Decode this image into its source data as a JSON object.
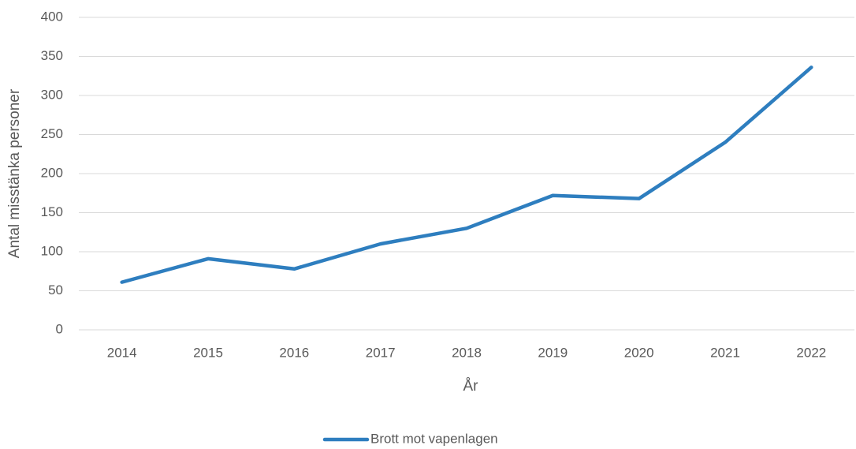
{
  "chart_data": {
    "type": "line",
    "categories": [
      "2014",
      "2015",
      "2016",
      "2017",
      "2018",
      "2019",
      "2020",
      "2021",
      "2022"
    ],
    "series": [
      {
        "name": "Brott mot vapenlagen",
        "color": "#2e7ebf",
        "values": [
          61,
          91,
          78,
          110,
          130,
          172,
          168,
          240,
          336
        ]
      }
    ],
    "xlabel": "År",
    "ylabel": "Antal misstänka personer",
    "ylim": [
      0,
      400
    ],
    "yticks": [
      0,
      50,
      100,
      150,
      200,
      250,
      300,
      350,
      400
    ],
    "grid": true,
    "legend": "bottom"
  }
}
